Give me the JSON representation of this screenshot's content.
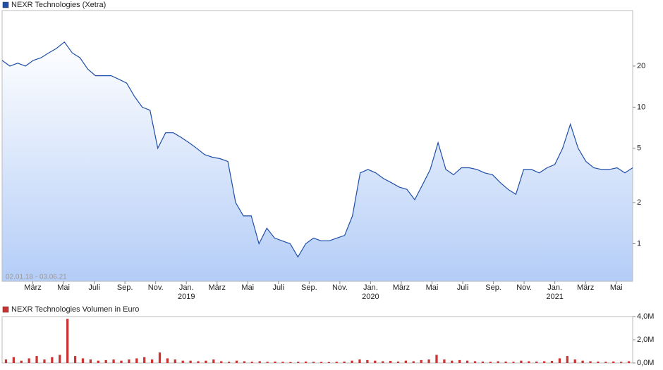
{
  "chart_data": [
    {
      "type": "line",
      "log_scale": true,
      "grid": false,
      "annotation": "02.01.18 - 03.06.21",
      "x_labels": [
        "März",
        "Mai",
        "Juli",
        "Sep.",
        "Nov.",
        "Jan.",
        "März",
        "Mai",
        "Juli",
        "Sep.",
        "Nov.",
        "Jan.",
        "März",
        "Mai",
        "Juli",
        "Sep.",
        "Nov.",
        "Jan.",
        "März",
        "Mai"
      ],
      "x_year_labels": [
        "2019",
        "2020",
        "2021"
      ],
      "series": [
        {
          "name": "NEXR Technologies (Xetra)",
          "color": "#1f4fa8",
          "values": [
            22,
            20,
            21,
            20,
            22,
            23,
            25,
            27,
            30,
            25,
            23,
            19,
            17,
            17,
            17,
            16,
            15,
            12,
            10,
            9.5,
            5,
            6.5,
            6.5,
            6,
            5.5,
            5,
            4.5,
            4.3,
            4.2,
            4,
            2,
            1.6,
            1.6,
            1.0,
            1.3,
            1.1,
            1.05,
            1.0,
            0.8,
            1.0,
            1.1,
            1.05,
            1.05,
            1.1,
            1.15,
            1.6,
            3.3,
            3.5,
            3.3,
            3.0,
            2.8,
            2.6,
            2.5,
            2.1,
            2.7,
            3.5,
            5.5,
            3.5,
            3.2,
            3.6,
            3.6,
            3.5,
            3.3,
            3.2,
            2.8,
            2.5,
            2.3,
            3.5,
            3.5,
            3.3,
            3.6,
            3.8,
            5.0,
            7.5,
            5,
            4,
            3.6,
            3.5,
            3.5,
            3.6,
            3.3,
            3.6
          ]
        }
      ],
      "ylim": [
        0.53,
        51
      ],
      "yticks": [
        1,
        2,
        5,
        10,
        20
      ]
    },
    {
      "type": "bar",
      "series": [
        {
          "name": "NEXR Technologies Volumen in Euro",
          "color": "#cc3333",
          "values": [
            300000,
            500000,
            200000,
            400000,
            600000,
            300000,
            500000,
            700000,
            3800000,
            600000,
            400000,
            300000,
            200000,
            250000,
            300000,
            200000,
            300000,
            400000,
            500000,
            300000,
            900000,
            400000,
            300000,
            200000,
            200000,
            150000,
            200000,
            300000,
            150000,
            100000,
            200000,
            150000,
            100000,
            150000,
            100000,
            120000,
            100000,
            80000,
            100000,
            120000,
            100000,
            90000,
            80000,
            100000,
            120000,
            200000,
            300000,
            250000,
            200000,
            150000,
            180000,
            120000,
            200000,
            150000,
            250000,
            300000,
            700000,
            300000,
            200000,
            250000,
            200000,
            150000,
            120000,
            100000,
            150000,
            120000,
            100000,
            200000,
            150000,
            120000,
            150000,
            180000,
            400000,
            600000,
            300000,
            200000,
            150000,
            120000,
            100000,
            130000,
            100000,
            150000
          ]
        }
      ],
      "ylim": [
        0,
        4000000
      ],
      "yticks": [
        {
          "value": 0,
          "label": "0,0M"
        },
        {
          "value": 2000000,
          "label": "2,0M"
        },
        {
          "value": 4000000,
          "label": "4,0M"
        }
      ]
    }
  ]
}
